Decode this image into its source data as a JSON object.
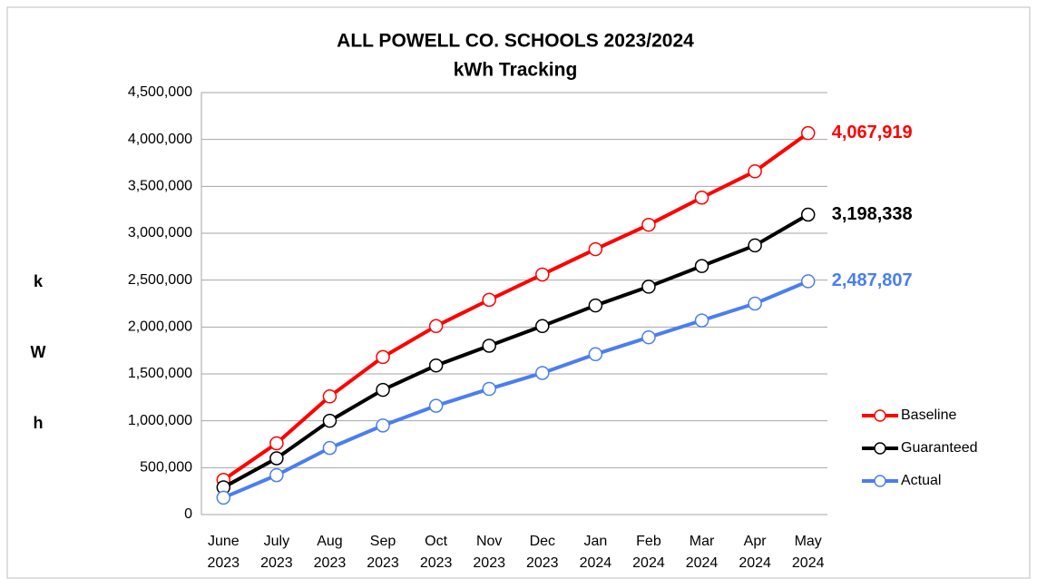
{
  "chart_data": {
    "type": "line",
    "title": "ALL POWELL CO. SCHOOLS 2023/2024",
    "subtitle": "kWh Tracking",
    "ylabel": [
      "k",
      "W",
      "h"
    ],
    "categories": [
      [
        "June",
        "2023"
      ],
      [
        "July",
        "2023"
      ],
      [
        "Aug",
        "2023"
      ],
      [
        "Sep",
        "2023"
      ],
      [
        "Oct",
        "2023"
      ],
      [
        "Nov",
        "2023"
      ],
      [
        "Dec",
        "2023"
      ],
      [
        "Jan",
        "2024"
      ],
      [
        "Feb",
        "2024"
      ],
      [
        "Mar",
        "2024"
      ],
      [
        "Apr",
        "2024"
      ],
      [
        "May",
        "2024"
      ]
    ],
    "series": [
      {
        "name": "Baseline",
        "color": "#ff0000",
        "values": [
          370000,
          760000,
          1260000,
          1680000,
          2010000,
          2290000,
          2560000,
          2830000,
          3090000,
          3380000,
          3660000,
          4067919
        ],
        "value_labels": [
          null,
          null,
          null,
          null,
          null,
          null,
          null,
          null,
          null,
          null,
          null,
          "4,067,919"
        ]
      },
      {
        "name": "Guaranteed",
        "color": "#000000",
        "values": [
          290000,
          600000,
          1000000,
          1330000,
          1590000,
          1800000,
          2010000,
          2230000,
          2430000,
          2650000,
          2870000,
          3198338
        ],
        "value_labels": [
          null,
          null,
          null,
          null,
          null,
          null,
          null,
          null,
          null,
          null,
          null,
          "3,198,338"
        ]
      },
      {
        "name": "Actual",
        "color": "#4a7ef0",
        "values": [
          180000,
          420000,
          710000,
          950000,
          1160000,
          1340000,
          1510000,
          1710000,
          1890000,
          2070000,
          2250000,
          2487807
        ],
        "value_labels": [
          null,
          null,
          null,
          null,
          null,
          null,
          null,
          null,
          null,
          null,
          null,
          "2,487,807"
        ]
      }
    ],
    "ylim": [
      0,
      4500000
    ],
    "yticks": [
      0,
      {
        "value": 500000,
        "label": "500,000"
      },
      {
        "value": 1000000,
        "label": "1,000,000"
      },
      {
        "value": 1500000,
        "label": "1,500,000"
      },
      {
        "value": 2000000,
        "label": "2,000,000"
      },
      {
        "value": 2500000,
        "label": "2,500,000"
      },
      {
        "value": 3000000,
        "label": "3,000,000"
      },
      {
        "value": 3500000,
        "label": "3,500,000"
      },
      {
        "value": 4000000,
        "label": "4,000,000"
      },
      {
        "value": 4500000,
        "label": "4,500,000"
      }
    ],
    "grid": true,
    "legend": "right"
  }
}
